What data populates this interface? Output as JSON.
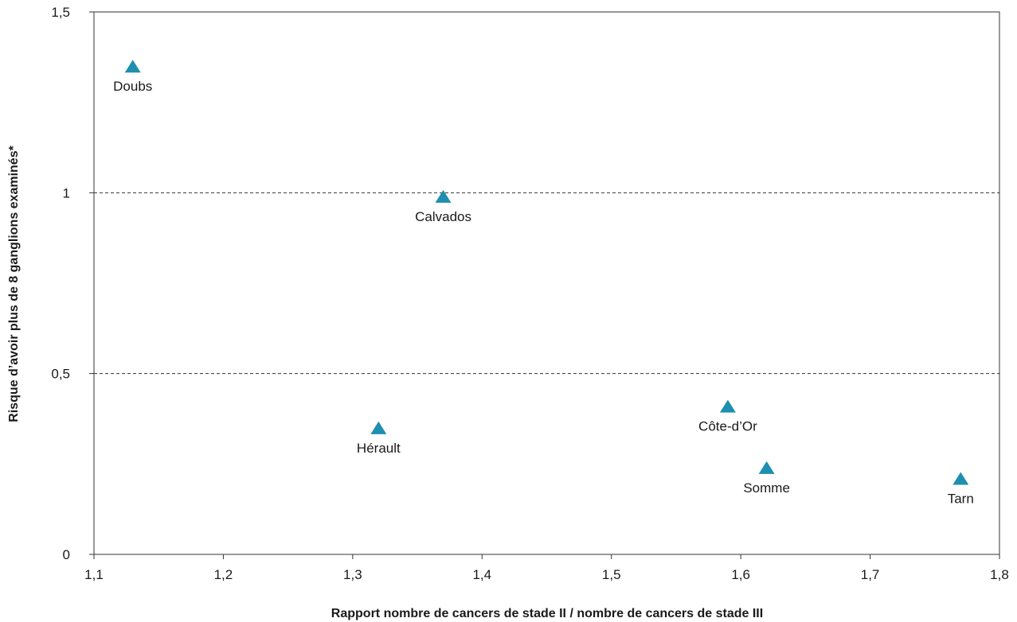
{
  "chart_data": {
    "type": "scatter",
    "title": "",
    "xlabel": "Rapport nombre de cancers de stade II / nombre de cancers de stade III",
    "ylabel": "Risque d’avoir plus de 8 ganglions examinés*",
    "xlim": [
      1.1,
      1.8
    ],
    "ylim": [
      0,
      1.5
    ],
    "x_ticks": [
      1.1,
      1.2,
      1.3,
      1.4,
      1.5,
      1.6,
      1.7,
      1.8
    ],
    "x_tick_labels": [
      "1,1",
      "1,2",
      "1,3",
      "1,4",
      "1,5",
      "1,6",
      "1,7",
      "1,8"
    ],
    "y_ticks": [
      0,
      0.5,
      1,
      1.5
    ],
    "y_tick_labels": [
      "0",
      "0,5",
      "1",
      "1,5"
    ],
    "reference_lines_y": [
      0.5,
      1
    ],
    "grid": false,
    "legend": "none",
    "marker": "triangle",
    "marker_color": "#1e8fae",
    "points": [
      {
        "label": "Doubs",
        "x": 1.13,
        "y": 1.35
      },
      {
        "label": "Calvados",
        "x": 1.37,
        "y": 0.99
      },
      {
        "label": "Hérault",
        "x": 1.32,
        "y": 0.35
      },
      {
        "label": "Côte-d’Or",
        "x": 1.59,
        "y": 0.41
      },
      {
        "label": "Somme",
        "x": 1.62,
        "y": 0.24
      },
      {
        "label": "Tarn",
        "x": 1.77,
        "y": 0.21
      }
    ]
  }
}
